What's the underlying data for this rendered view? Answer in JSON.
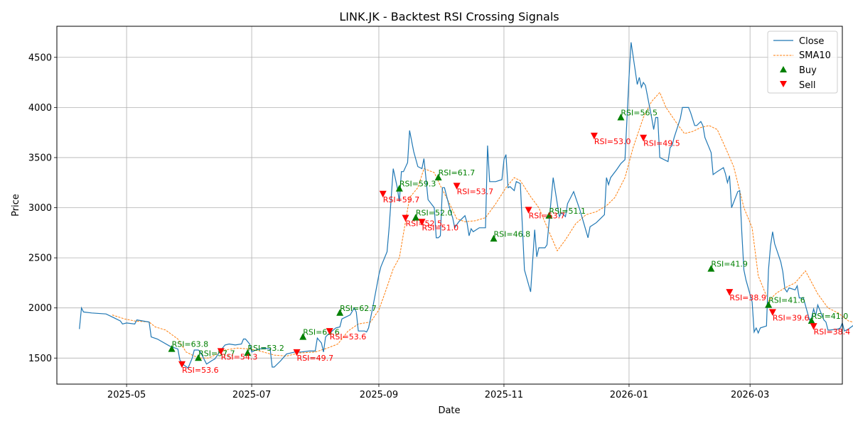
{
  "chart_data": {
    "type": "line",
    "title": "LINK.JK - Backtest RSI Crossing Signals",
    "xlabel": "Date",
    "ylabel": "Price",
    "x_range": [
      "2025-03-28",
      "2026-04-15"
    ],
    "ylim": [
      1240,
      4810
    ],
    "y_ticks": [
      1500,
      2000,
      2500,
      3000,
      3500,
      4000,
      4500
    ],
    "x_ticks": [
      {
        "date": "2025-05-01",
        "label": "2025-05"
      },
      {
        "date": "2025-07-01",
        "label": "2025-07"
      },
      {
        "date": "2025-09-01",
        "label": "2025-09"
      },
      {
        "date": "2025-11-01",
        "label": "2025-11"
      },
      {
        "date": "2026-01-01",
        "label": "2026-01"
      },
      {
        "date": "2026-03-01",
        "label": "2026-03"
      }
    ],
    "grid": true,
    "legend_position": "top-right",
    "colors": {
      "close": "#1f77b4",
      "sma": "#ff7f0e",
      "buy": "#008000",
      "sell": "#ff0000"
    },
    "legend": [
      {
        "key": "close",
        "label": "Close"
      },
      {
        "key": "sma",
        "label": "SMA10"
      },
      {
        "key": "buy",
        "label": "Buy"
      },
      {
        "key": "sell",
        "label": "Sell"
      }
    ],
    "close": [
      [
        "2025-04-08",
        1790
      ],
      [
        "2025-04-09",
        2000
      ],
      [
        "2025-04-10",
        1960
      ],
      [
        "2025-04-14",
        1950
      ],
      [
        "2025-04-21",
        1940
      ],
      [
        "2025-04-25",
        1900
      ],
      [
        "2025-04-28",
        1870
      ],
      [
        "2025-04-29",
        1840
      ],
      [
        "2025-05-01",
        1850
      ],
      [
        "2025-05-05",
        1840
      ],
      [
        "2025-05-06",
        1880
      ],
      [
        "2025-05-09",
        1870
      ],
      [
        "2025-05-12",
        1860
      ],
      [
        "2025-05-13",
        1710
      ],
      [
        "2025-05-16",
        1690
      ],
      [
        "2025-05-22",
        1620
      ],
      [
        "2025-05-26",
        1590
      ],
      [
        "2025-05-27",
        1480
      ],
      [
        "2025-05-29",
        1430
      ],
      [
        "2025-05-31",
        1400
      ],
      [
        "2025-06-02",
        1500
      ],
      [
        "2025-06-03",
        1580
      ],
      [
        "2025-06-05",
        1580
      ],
      [
        "2025-06-06",
        1560
      ],
      [
        "2025-06-09",
        1440
      ],
      [
        "2025-06-12",
        1480
      ],
      [
        "2025-06-13",
        1490
      ],
      [
        "2025-06-16",
        1580
      ],
      [
        "2025-06-18",
        1630
      ],
      [
        "2025-06-20",
        1640
      ],
      [
        "2025-06-23",
        1630
      ],
      [
        "2025-06-26",
        1640
      ],
      [
        "2025-06-27",
        1690
      ],
      [
        "2025-06-28",
        1690
      ],
      [
        "2025-06-30",
        1640
      ],
      [
        "2025-07-01",
        1560
      ],
      [
        "2025-07-03",
        1580
      ],
      [
        "2025-07-07",
        1600
      ],
      [
        "2025-07-10",
        1590
      ],
      [
        "2025-07-11",
        1410
      ],
      [
        "2025-07-12",
        1410
      ],
      [
        "2025-07-15",
        1470
      ],
      [
        "2025-07-18",
        1540
      ],
      [
        "2025-07-22",
        1560
      ],
      [
        "2025-07-25",
        1560
      ],
      [
        "2025-07-29",
        1570
      ],
      [
        "2025-08-01",
        1570
      ],
      [
        "2025-08-02",
        1700
      ],
      [
        "2025-08-04",
        1650
      ],
      [
        "2025-08-05",
        1560
      ],
      [
        "2025-08-06",
        1710
      ],
      [
        "2025-08-07",
        1730
      ],
      [
        "2025-08-11",
        1800
      ],
      [
        "2025-08-13",
        1810
      ],
      [
        "2025-08-14",
        1890
      ],
      [
        "2025-08-18",
        1930
      ],
      [
        "2025-08-20",
        2000
      ],
      [
        "2025-08-21",
        1960
      ],
      [
        "2025-08-22",
        1770
      ],
      [
        "2025-08-25",
        1770
      ],
      [
        "2025-08-26",
        1760
      ],
      [
        "2025-08-27",
        1800
      ],
      [
        "2025-08-29",
        2000
      ],
      [
        "2025-09-01",
        2330
      ],
      [
        "2025-09-02",
        2410
      ],
      [
        "2025-09-05",
        2560
      ],
      [
        "2025-09-06",
        2800
      ],
      [
        "2025-09-08",
        3390
      ],
      [
        "2025-09-10",
        3200
      ],
      [
        "2025-09-11",
        3060
      ],
      [
        "2025-09-12",
        3360
      ],
      [
        "2025-09-13",
        3360
      ],
      [
        "2025-09-15",
        3450
      ],
      [
        "2025-09-16",
        3770
      ],
      [
        "2025-09-18",
        3560
      ],
      [
        "2025-09-20",
        3410
      ],
      [
        "2025-09-22",
        3390
      ],
      [
        "2025-09-23",
        3490
      ],
      [
        "2025-09-24",
        3290
      ],
      [
        "2025-09-25",
        3080
      ],
      [
        "2025-09-28",
        3000
      ],
      [
        "2025-09-29",
        2700
      ],
      [
        "2025-09-30",
        2700
      ],
      [
        "2025-10-01",
        2720
      ],
      [
        "2025-10-02",
        3200
      ],
      [
        "2025-10-03",
        3200
      ],
      [
        "2025-10-06",
        2960
      ],
      [
        "2025-10-07",
        2900
      ],
      [
        "2025-10-08",
        2800
      ],
      [
        "2025-10-09",
        2830
      ],
      [
        "2025-10-10",
        2860
      ],
      [
        "2025-10-13",
        2920
      ],
      [
        "2025-10-14",
        2850
      ],
      [
        "2025-10-15",
        2720
      ],
      [
        "2025-10-16",
        2790
      ],
      [
        "2025-10-17",
        2760
      ],
      [
        "2025-10-20",
        2800
      ],
      [
        "2025-10-21",
        2800
      ],
      [
        "2025-10-23",
        2800
      ],
      [
        "2025-10-24",
        3620
      ],
      [
        "2025-10-25",
        3260
      ],
      [
        "2025-10-27",
        3260
      ],
      [
        "2025-10-28",
        3260
      ],
      [
        "2025-10-31",
        3280
      ],
      [
        "2025-11-01",
        3480
      ],
      [
        "2025-11-02",
        3530
      ],
      [
        "2025-11-03",
        3200
      ],
      [
        "2025-11-04",
        3210
      ],
      [
        "2025-11-06",
        3170
      ],
      [
        "2025-11-07",
        3260
      ],
      [
        "2025-11-09",
        3240
      ],
      [
        "2025-11-11",
        2380
      ],
      [
        "2025-11-14",
        2160
      ],
      [
        "2025-11-16",
        2780
      ],
      [
        "2025-11-17",
        2510
      ],
      [
        "2025-11-18",
        2600
      ],
      [
        "2025-11-21",
        2600
      ],
      [
        "2025-11-22",
        2630
      ],
      [
        "2025-11-25",
        3300
      ],
      [
        "2025-11-28",
        2910
      ],
      [
        "2025-11-29",
        2950
      ],
      [
        "2025-12-01",
        2910
      ],
      [
        "2025-12-02",
        3040
      ],
      [
        "2025-12-05",
        3160
      ],
      [
        "2025-12-06",
        3100
      ],
      [
        "2025-12-08",
        2980
      ],
      [
        "2025-12-10",
        2840
      ],
      [
        "2025-12-12",
        2700
      ],
      [
        "2025-12-13",
        2810
      ],
      [
        "2025-12-16",
        2850
      ],
      [
        "2025-12-18",
        2890
      ],
      [
        "2025-12-20",
        2930
      ],
      [
        "2025-12-21",
        3300
      ],
      [
        "2025-12-22",
        3230
      ],
      [
        "2025-12-23",
        3300
      ],
      [
        "2025-12-26",
        3380
      ],
      [
        "2025-12-28",
        3440
      ],
      [
        "2025-12-30",
        3480
      ],
      [
        "2026-01-01",
        4300
      ],
      [
        "2026-01-02",
        4650
      ],
      [
        "2026-01-05",
        4230
      ],
      [
        "2026-01-06",
        4300
      ],
      [
        "2026-01-07",
        4200
      ],
      [
        "2026-01-08",
        4250
      ],
      [
        "2026-01-09",
        4220
      ],
      [
        "2026-01-12",
        3900
      ],
      [
        "2026-01-13",
        3780
      ],
      [
        "2026-01-14",
        3900
      ],
      [
        "2026-01-15",
        3900
      ],
      [
        "2026-01-16",
        3500
      ],
      [
        "2026-01-20",
        3460
      ],
      [
        "2026-01-21",
        3600
      ],
      [
        "2026-01-22",
        3620
      ],
      [
        "2026-01-23",
        3700
      ],
      [
        "2026-01-26",
        3890
      ],
      [
        "2026-01-27",
        4000
      ],
      [
        "2026-01-28",
        4000
      ],
      [
        "2026-01-30",
        4000
      ],
      [
        "2026-01-31",
        3950
      ],
      [
        "2026-02-02",
        3820
      ],
      [
        "2026-02-03",
        3820
      ],
      [
        "2026-02-05",
        3860
      ],
      [
        "2026-02-06",
        3820
      ],
      [
        "2026-02-07",
        3700
      ],
      [
        "2026-02-09",
        3600
      ],
      [
        "2026-02-10",
        3550
      ],
      [
        "2026-02-11",
        3330
      ],
      [
        "2026-02-13",
        3360
      ],
      [
        "2026-02-16",
        3400
      ],
      [
        "2026-02-17",
        3340
      ],
      [
        "2026-02-18",
        3250
      ],
      [
        "2026-02-19",
        3320
      ],
      [
        "2026-02-20",
        3000
      ],
      [
        "2026-02-23",
        3160
      ],
      [
        "2026-02-24",
        3170
      ],
      [
        "2026-02-25",
        2750
      ],
      [
        "2026-02-26",
        2380
      ],
      [
        "2026-02-27",
        2280
      ],
      [
        "2026-03-02",
        2060
      ],
      [
        "2026-03-03",
        1760
      ],
      [
        "2026-03-04",
        1800
      ],
      [
        "2026-03-05",
        1750
      ],
      [
        "2026-03-06",
        1800
      ],
      [
        "2026-03-09",
        1820
      ],
      [
        "2026-03-10",
        2380
      ],
      [
        "2026-03-11",
        2620
      ],
      [
        "2026-03-12",
        2760
      ],
      [
        "2026-03-13",
        2640
      ],
      [
        "2026-03-16",
        2460
      ],
      [
        "2026-03-17",
        2360
      ],
      [
        "2026-03-18",
        2190
      ],
      [
        "2026-03-19",
        2160
      ],
      [
        "2026-03-20",
        2200
      ],
      [
        "2026-03-23",
        2180
      ],
      [
        "2026-03-24",
        2220
      ],
      [
        "2026-03-25",
        2100
      ],
      [
        "2026-03-26",
        2100
      ],
      [
        "2026-03-27",
        2100
      ],
      [
        "2026-03-30",
        1880
      ],
      [
        "2026-03-31",
        1900
      ],
      [
        "2026-04-01",
        1990
      ],
      [
        "2026-04-02",
        1920
      ],
      [
        "2026-04-03",
        2030
      ],
      [
        "2026-04-06",
        1880
      ],
      [
        "2026-04-07",
        1860
      ],
      [
        "2026-04-08",
        1780
      ],
      [
        "2026-04-09",
        1780
      ],
      [
        "2026-04-13",
        1790
      ],
      [
        "2026-04-14",
        1800
      ],
      [
        "2026-04-15",
        1850
      ],
      [
        "2026-04-16",
        1770
      ],
      [
        "2026-04-18",
        1790
      ],
      [
        "2026-04-20",
        1820
      ],
      [
        "2026-04-22",
        1850
      ],
      [
        "2026-04-24",
        1820
      ]
    ],
    "sma10": [
      [
        "2025-04-24",
        1930
      ],
      [
        "2025-04-30",
        1890
      ],
      [
        "2025-05-05",
        1870
      ],
      [
        "2025-05-12",
        1860
      ],
      [
        "2025-05-15",
        1810
      ],
      [
        "2025-05-20",
        1780
      ],
      [
        "2025-05-26",
        1690
      ],
      [
        "2025-05-30",
        1560
      ],
      [
        "2025-06-03",
        1520
      ],
      [
        "2025-06-06",
        1500
      ],
      [
        "2025-06-10",
        1500
      ],
      [
        "2025-06-14",
        1540
      ],
      [
        "2025-06-18",
        1580
      ],
      [
        "2025-06-24",
        1600
      ],
      [
        "2025-06-30",
        1590
      ],
      [
        "2025-07-05",
        1570
      ],
      [
        "2025-07-12",
        1530
      ],
      [
        "2025-07-18",
        1520
      ],
      [
        "2025-07-24",
        1550
      ],
      [
        "2025-08-01",
        1560
      ],
      [
        "2025-08-07",
        1600
      ],
      [
        "2025-08-12",
        1640
      ],
      [
        "2025-08-17",
        1770
      ],
      [
        "2025-08-22",
        1840
      ],
      [
        "2025-08-28",
        1860
      ],
      [
        "2025-09-01",
        1980
      ],
      [
        "2025-09-04",
        2150
      ],
      [
        "2025-09-08",
        2390
      ],
      [
        "2025-09-11",
        2500
      ],
      [
        "2025-09-16",
        3100
      ],
      [
        "2025-09-20",
        3200
      ],
      [
        "2025-09-23",
        3390
      ],
      [
        "2025-09-28",
        3350
      ],
      [
        "2025-10-01",
        3220
      ],
      [
        "2025-10-05",
        3060
      ],
      [
        "2025-10-09",
        2890
      ],
      [
        "2025-10-13",
        2860
      ],
      [
        "2025-10-18",
        2870
      ],
      [
        "2025-10-23",
        2900
      ],
      [
        "2025-10-28",
        3040
      ],
      [
        "2025-11-02",
        3200
      ],
      [
        "2025-11-06",
        3300
      ],
      [
        "2025-11-09",
        3270
      ],
      [
        "2025-11-14",
        3110
      ],
      [
        "2025-11-18",
        3000
      ],
      [
        "2025-11-23",
        2760
      ],
      [
        "2025-11-27",
        2570
      ],
      [
        "2025-12-01",
        2680
      ],
      [
        "2025-12-06",
        2840
      ],
      [
        "2025-12-11",
        2930
      ],
      [
        "2025-12-16",
        2960
      ],
      [
        "2025-12-21",
        3020
      ],
      [
        "2025-12-25",
        3100
      ],
      [
        "2025-12-30",
        3300
      ],
      [
        "2026-01-03",
        3600
      ],
      [
        "2026-01-08",
        3900
      ],
      [
        "2026-01-12",
        4060
      ],
      [
        "2026-01-16",
        4150
      ],
      [
        "2026-01-19",
        4000
      ],
      [
        "2026-01-24",
        3850
      ],
      [
        "2026-01-28",
        3740
      ],
      [
        "2026-02-01",
        3760
      ],
      [
        "2026-02-05",
        3800
      ],
      [
        "2026-02-09",
        3820
      ],
      [
        "2026-02-13",
        3780
      ],
      [
        "2026-02-17",
        3600
      ],
      [
        "2026-02-21",
        3410
      ],
      [
        "2026-02-26",
        3000
      ],
      [
        "2026-03-02",
        2800
      ],
      [
        "2026-03-05",
        2320
      ],
      [
        "2026-03-10",
        2070
      ],
      [
        "2026-03-14",
        2150
      ],
      [
        "2026-03-18",
        2200
      ],
      [
        "2026-03-23",
        2250
      ],
      [
        "2026-03-28",
        2370
      ],
      [
        "2026-04-03",
        2140
      ],
      [
        "2026-04-08",
        2000
      ],
      [
        "2026-04-13",
        1950
      ],
      [
        "2026-04-18",
        1870
      ],
      [
        "2026-04-22",
        1850
      ]
    ],
    "buy_signals": [
      {
        "date": "2025-05-23",
        "price": 1590,
        "label": "RSI=63.8"
      },
      {
        "date": "2025-06-05",
        "price": 1500,
        "label": "RSI=57.7"
      },
      {
        "date": "2025-06-29",
        "price": 1550,
        "label": "RSI=53.2"
      },
      {
        "date": "2025-07-26",
        "price": 1710,
        "label": "RSI=63.6"
      },
      {
        "date": "2025-08-13",
        "price": 1950,
        "label": "RSI=62.7"
      },
      {
        "date": "2025-09-11",
        "price": 3190,
        "label": "RSI=59.3"
      },
      {
        "date": "2025-09-19",
        "price": 2900,
        "label": "RSI=52.0"
      },
      {
        "date": "2025-09-30",
        "price": 3300,
        "label": "RSI=61.7"
      },
      {
        "date": "2025-10-27",
        "price": 2690,
        "label": "RSI=46.8"
      },
      {
        "date": "2025-11-23",
        "price": 2920,
        "label": "RSI=51.1"
      },
      {
        "date": "2025-12-28",
        "price": 3900,
        "label": "RSI=56.5"
      },
      {
        "date": "2026-02-10",
        "price": 2390,
        "label": "RSI=41.9"
      },
      {
        "date": "2026-03-10",
        "price": 2030,
        "label": "RSI=41.6"
      },
      {
        "date": "2026-03-31",
        "price": 1870,
        "label": "RSI=41.0"
      }
    ],
    "sell_signals": [
      {
        "date": "2025-05-28",
        "price": 1440,
        "label": "RSI=53.6"
      },
      {
        "date": "2025-06-16",
        "price": 1570,
        "label": "RSI=54.3"
      },
      {
        "date": "2025-07-23",
        "price": 1560,
        "label": "RSI=49.7"
      },
      {
        "date": "2025-08-08",
        "price": 1770,
        "label": "RSI=53.6"
      },
      {
        "date": "2025-09-03",
        "price": 3140,
        "label": "RSI=59.7"
      },
      {
        "date": "2025-09-14",
        "price": 2900,
        "label": "RSI=52.5"
      },
      {
        "date": "2025-09-22",
        "price": 2860,
        "label": "RSI=51.0"
      },
      {
        "date": "2025-10-09",
        "price": 3220,
        "label": "RSI=53.7"
      },
      {
        "date": "2025-11-13",
        "price": 2980,
        "label": "RSI=53.7"
      },
      {
        "date": "2025-12-15",
        "price": 3720,
        "label": "RSI=53.0"
      },
      {
        "date": "2026-01-08",
        "price": 3700,
        "label": "RSI=49.5"
      },
      {
        "date": "2026-02-19",
        "price": 2160,
        "label": "RSI=38.9"
      },
      {
        "date": "2026-03-12",
        "price": 1960,
        "label": "RSI=39.6"
      },
      {
        "date": "2026-04-01",
        "price": 1820,
        "label": "RSI=38.4"
      }
    ]
  }
}
